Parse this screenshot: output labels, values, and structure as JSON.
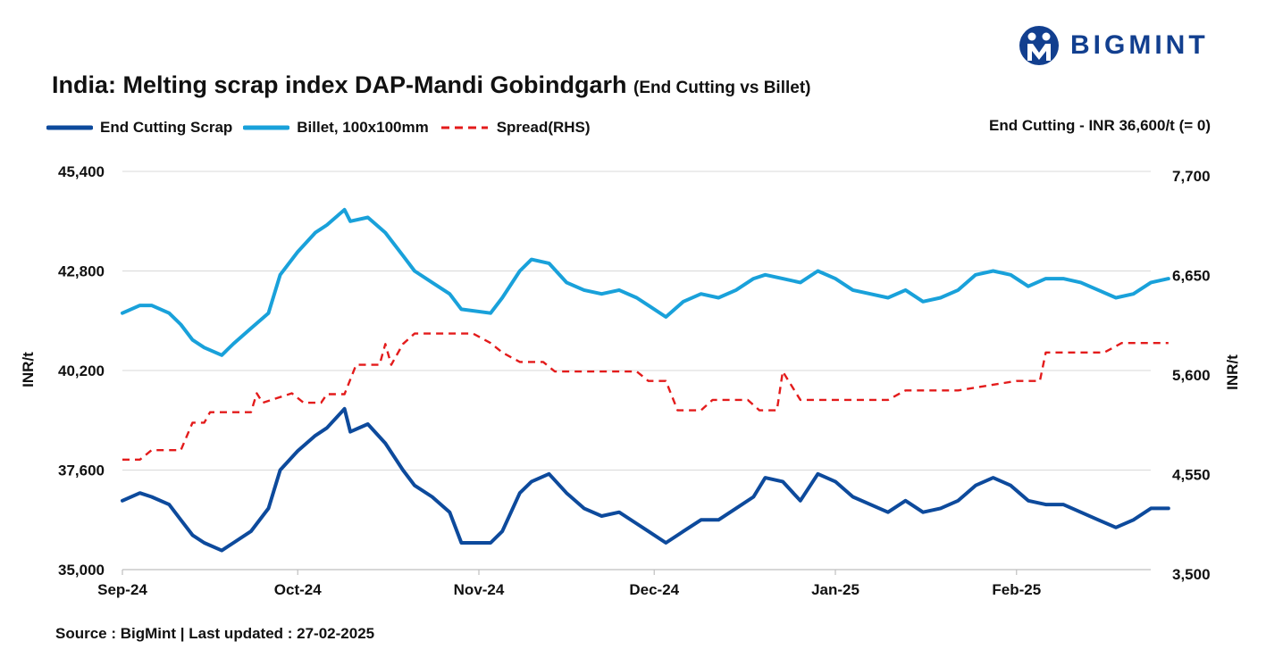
{
  "logo": {
    "text": "BIGMINT",
    "icon": "bigmint-logo-icon",
    "color": "#123f8f"
  },
  "title": {
    "main": "India: Melting scrap index DAP-Mandi Gobindgarh",
    "sub": "(End Cutting vs Billet)"
  },
  "note": "End Cutting - INR 36,600/t (= 0)",
  "source": "Source : BigMint | Last updated : 27-02-2025",
  "chart_data": {
    "type": "line",
    "x_ticks": [
      "Sep-24",
      "Oct-24",
      "Nov-24",
      "Dec-24",
      "Jan-25",
      "Feb-25"
    ],
    "x_range": [
      "2024-09-01",
      "2025-02-27"
    ],
    "y_left": {
      "label": "INR/t",
      "range": [
        35000,
        45400
      ],
      "ticks": [
        "35,000",
        "37,600",
        "40,200",
        "42,800",
        "45,400"
      ]
    },
    "y_right": {
      "label": "INR/t",
      "range": [
        3500,
        7700
      ],
      "ticks": [
        "3,500",
        "4,550",
        "5,600",
        "6,650",
        "7,700"
      ]
    },
    "grid": "horizontal",
    "legend_position": "top-left",
    "series": [
      {
        "name": "End Cutting Scrap",
        "axis": "left",
        "color": "#0d4a9c",
        "style": "solid",
        "points": [
          [
            "2024-09-01",
            36800
          ],
          [
            "2024-09-04",
            37000
          ],
          [
            "2024-09-06",
            36900
          ],
          [
            "2024-09-09",
            36700
          ],
          [
            "2024-09-11",
            36300
          ],
          [
            "2024-09-13",
            35900
          ],
          [
            "2024-09-15",
            35700
          ],
          [
            "2024-09-18",
            35500
          ],
          [
            "2024-09-20",
            35700
          ],
          [
            "2024-09-23",
            36000
          ],
          [
            "2024-09-26",
            36600
          ],
          [
            "2024-09-28",
            37600
          ],
          [
            "2024-10-01",
            38100
          ],
          [
            "2024-10-04",
            38500
          ],
          [
            "2024-10-06",
            38700
          ],
          [
            "2024-10-09",
            39200
          ],
          [
            "2024-10-10",
            38600
          ],
          [
            "2024-10-13",
            38800
          ],
          [
            "2024-10-16",
            38300
          ],
          [
            "2024-10-19",
            37600
          ],
          [
            "2024-10-21",
            37200
          ],
          [
            "2024-10-24",
            36900
          ],
          [
            "2024-10-27",
            36500
          ],
          [
            "2024-10-29",
            35700
          ],
          [
            "2024-11-03",
            35700
          ],
          [
            "2024-11-05",
            36000
          ],
          [
            "2024-11-08",
            37000
          ],
          [
            "2024-11-10",
            37300
          ],
          [
            "2024-11-13",
            37500
          ],
          [
            "2024-11-16",
            37000
          ],
          [
            "2024-11-19",
            36600
          ],
          [
            "2024-11-22",
            36400
          ],
          [
            "2024-11-25",
            36500
          ],
          [
            "2024-11-28",
            36200
          ],
          [
            "2024-11-30",
            36000
          ],
          [
            "2024-12-03",
            35700
          ],
          [
            "2024-12-06",
            36000
          ],
          [
            "2024-12-09",
            36300
          ],
          [
            "2024-12-12",
            36300
          ],
          [
            "2024-12-15",
            36600
          ],
          [
            "2024-12-18",
            36900
          ],
          [
            "2024-12-20",
            37400
          ],
          [
            "2024-12-23",
            37300
          ],
          [
            "2024-12-26",
            36800
          ],
          [
            "2024-12-29",
            37500
          ],
          [
            "2025-01-01",
            37300
          ],
          [
            "2025-01-04",
            36900
          ],
          [
            "2025-01-07",
            36700
          ],
          [
            "2025-01-10",
            36500
          ],
          [
            "2025-01-13",
            36800
          ],
          [
            "2025-01-16",
            36500
          ],
          [
            "2025-01-19",
            36600
          ],
          [
            "2025-01-22",
            36800
          ],
          [
            "2025-01-25",
            37200
          ],
          [
            "2025-01-28",
            37400
          ],
          [
            "2025-01-31",
            37200
          ],
          [
            "2025-02-03",
            36800
          ],
          [
            "2025-02-06",
            36700
          ],
          [
            "2025-02-09",
            36700
          ],
          [
            "2025-02-12",
            36500
          ],
          [
            "2025-02-15",
            36300
          ],
          [
            "2025-02-18",
            36100
          ],
          [
            "2025-02-21",
            36300
          ],
          [
            "2025-02-24",
            36600
          ],
          [
            "2025-02-27",
            36600
          ]
        ]
      },
      {
        "name": "Billet, 100x100mm",
        "axis": "left",
        "color": "#19a1da",
        "style": "solid",
        "points": [
          [
            "2024-09-01",
            41700
          ],
          [
            "2024-09-04",
            41900
          ],
          [
            "2024-09-06",
            41900
          ],
          [
            "2024-09-09",
            41700
          ],
          [
            "2024-09-11",
            41400
          ],
          [
            "2024-09-13",
            41000
          ],
          [
            "2024-09-15",
            40800
          ],
          [
            "2024-09-18",
            40600
          ],
          [
            "2024-09-20",
            40900
          ],
          [
            "2024-09-23",
            41300
          ],
          [
            "2024-09-26",
            41700
          ],
          [
            "2024-09-28",
            42700
          ],
          [
            "2024-10-01",
            43300
          ],
          [
            "2024-10-04",
            43800
          ],
          [
            "2024-10-06",
            44000
          ],
          [
            "2024-10-09",
            44400
          ],
          [
            "2024-10-10",
            44100
          ],
          [
            "2024-10-13",
            44200
          ],
          [
            "2024-10-16",
            43800
          ],
          [
            "2024-10-19",
            43200
          ],
          [
            "2024-10-21",
            42800
          ],
          [
            "2024-10-24",
            42500
          ],
          [
            "2024-10-27",
            42200
          ],
          [
            "2024-10-29",
            41800
          ],
          [
            "2024-11-03",
            41700
          ],
          [
            "2024-11-05",
            42100
          ],
          [
            "2024-11-08",
            42800
          ],
          [
            "2024-11-10",
            43100
          ],
          [
            "2024-11-13",
            43000
          ],
          [
            "2024-11-16",
            42500
          ],
          [
            "2024-11-19",
            42300
          ],
          [
            "2024-11-22",
            42200
          ],
          [
            "2024-11-25",
            42300
          ],
          [
            "2024-11-28",
            42100
          ],
          [
            "2024-11-30",
            41900
          ],
          [
            "2024-12-03",
            41600
          ],
          [
            "2024-12-06",
            42000
          ],
          [
            "2024-12-09",
            42200
          ],
          [
            "2024-12-12",
            42100
          ],
          [
            "2024-12-15",
            42300
          ],
          [
            "2024-12-18",
            42600
          ],
          [
            "2024-12-20",
            42700
          ],
          [
            "2024-12-23",
            42600
          ],
          [
            "2024-12-26",
            42500
          ],
          [
            "2024-12-29",
            42800
          ],
          [
            "2025-01-01",
            42600
          ],
          [
            "2025-01-04",
            42300
          ],
          [
            "2025-01-07",
            42200
          ],
          [
            "2025-01-10",
            42100
          ],
          [
            "2025-01-13",
            42300
          ],
          [
            "2025-01-16",
            42000
          ],
          [
            "2025-01-19",
            42100
          ],
          [
            "2025-01-22",
            42300
          ],
          [
            "2025-01-25",
            42700
          ],
          [
            "2025-01-28",
            42800
          ],
          [
            "2025-01-31",
            42700
          ],
          [
            "2025-02-03",
            42400
          ],
          [
            "2025-02-06",
            42600
          ],
          [
            "2025-02-09",
            42600
          ],
          [
            "2025-02-12",
            42500
          ],
          [
            "2025-02-15",
            42300
          ],
          [
            "2025-02-18",
            42100
          ],
          [
            "2025-02-21",
            42200
          ],
          [
            "2025-02-24",
            42500
          ],
          [
            "2025-02-27",
            42600
          ]
        ]
      },
      {
        "name": "Spread(RHS)",
        "axis": "right",
        "color": "#e31b1b",
        "style": "dashed",
        "points": [
          [
            "2024-09-01",
            4660
          ],
          [
            "2024-09-04",
            4660
          ],
          [
            "2024-09-06",
            4760
          ],
          [
            "2024-09-11",
            4760
          ],
          [
            "2024-09-13",
            5050
          ],
          [
            "2024-09-15",
            5050
          ],
          [
            "2024-09-16",
            5160
          ],
          [
            "2024-09-23",
            5160
          ],
          [
            "2024-09-24",
            5360
          ],
          [
            "2024-09-25",
            5260
          ],
          [
            "2024-09-30",
            5360
          ],
          [
            "2024-10-02",
            5260
          ],
          [
            "2024-10-05",
            5260
          ],
          [
            "2024-10-06",
            5350
          ],
          [
            "2024-10-09",
            5350
          ],
          [
            "2024-10-11",
            5660
          ],
          [
            "2024-10-15",
            5660
          ],
          [
            "2024-10-16",
            5880
          ],
          [
            "2024-10-17",
            5660
          ],
          [
            "2024-10-19",
            5880
          ],
          [
            "2024-10-21",
            5990
          ],
          [
            "2024-10-25",
            5990
          ],
          [
            "2024-10-31",
            5990
          ],
          [
            "2024-11-03",
            5890
          ],
          [
            "2024-11-05",
            5790
          ],
          [
            "2024-11-08",
            5690
          ],
          [
            "2024-11-12",
            5690
          ],
          [
            "2024-11-14",
            5590
          ],
          [
            "2024-11-28",
            5590
          ],
          [
            "2024-11-30",
            5490
          ],
          [
            "2024-12-03",
            5490
          ],
          [
            "2024-12-05",
            5180
          ],
          [
            "2024-12-09",
            5180
          ],
          [
            "2024-12-11",
            5290
          ],
          [
            "2024-12-17",
            5290
          ],
          [
            "2024-12-19",
            5180
          ],
          [
            "2024-12-22",
            5180
          ],
          [
            "2024-12-23",
            5590
          ],
          [
            "2024-12-26",
            5290
          ],
          [
            "2025-01-01",
            5290
          ],
          [
            "2025-01-10",
            5290
          ],
          [
            "2025-01-13",
            5390
          ],
          [
            "2025-01-16",
            5390
          ],
          [
            "2025-01-22",
            5390
          ],
          [
            "2025-02-01",
            5490
          ],
          [
            "2025-02-05",
            5490
          ],
          [
            "2025-02-06",
            5790
          ],
          [
            "2025-02-09",
            5790
          ],
          [
            "2025-02-16",
            5790
          ],
          [
            "2025-02-19",
            5890
          ],
          [
            "2025-02-27",
            5890
          ]
        ]
      }
    ]
  }
}
